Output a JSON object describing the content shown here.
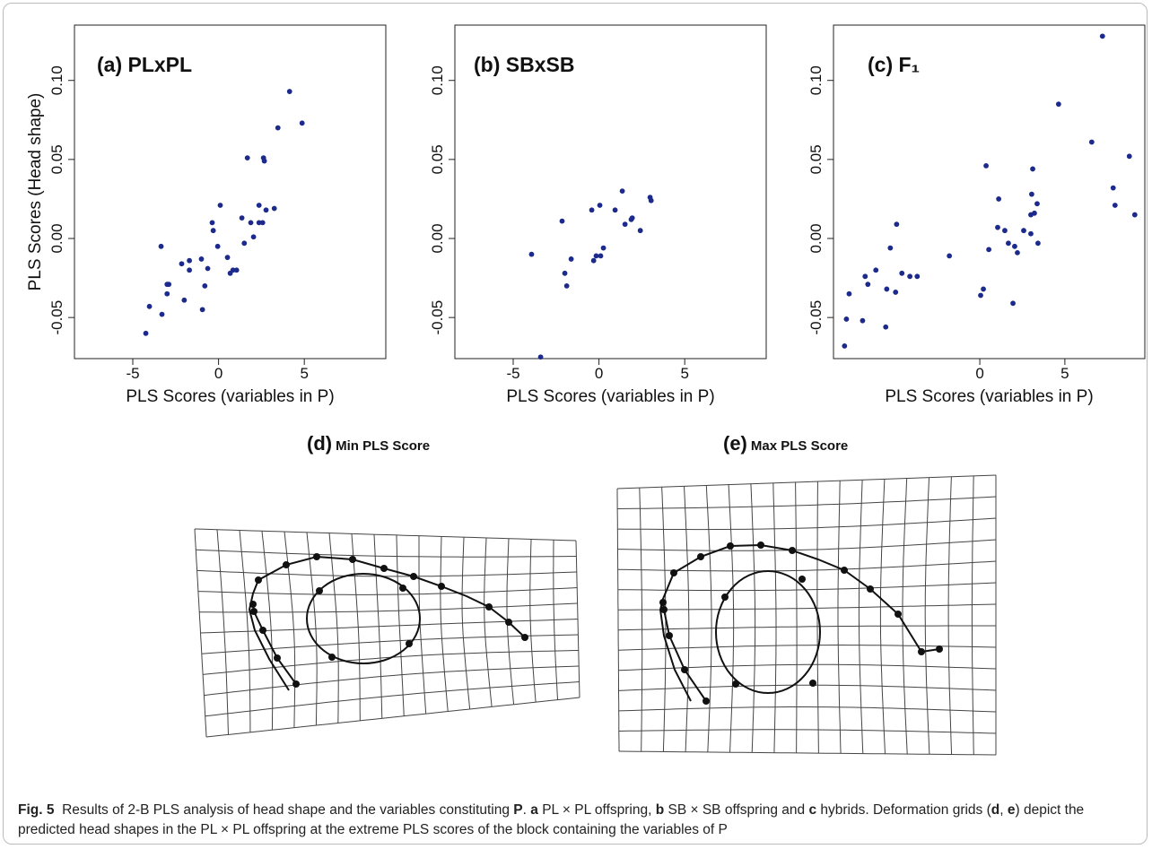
{
  "chart_data": [
    {
      "type": "scatter",
      "title": "(a) PLxPL",
      "xlabel": "PLS Scores (variables in P)",
      "ylabel": "PLS Scores (Head shape)",
      "color": "#1c2a8c",
      "x": [
        -4.24,
        -4.03,
        -3.3,
        -3.35,
        -3,
        -2.9,
        -3,
        -2.15,
        -2,
        -1.7,
        -1.7,
        -1,
        -0.94,
        -0.8,
        -0.63,
        -0.37,
        -0.31,
        -0.05,
        0.1,
        0.52,
        0.68,
        0.84,
        1.05,
        1.36,
        1.5,
        1.68,
        1.88,
        2.04,
        2.36,
        2.36,
        2.57,
        2.62,
        2.67,
        2.77,
        3.25,
        3.46,
        4.14,
        4.87
      ],
      "y": [
        -0.06,
        -0.043,
        -0.048,
        -0.005,
        -0.029,
        -0.029,
        -0.035,
        -0.016,
        -0.039,
        -0.02,
        -0.014,
        -0.013,
        -0.045,
        -0.03,
        -0.019,
        0.01,
        0.005,
        -0.005,
        0.021,
        -0.012,
        -0.022,
        -0.02,
        -0.02,
        0.013,
        -0.003,
        0.051,
        0.01,
        0.001,
        0.021,
        0.01,
        0.01,
        0.051,
        0.049,
        0.018,
        0.019,
        0.07,
        0.093,
        0.073
      ],
      "xlim": [
        -8.4,
        9.75
      ],
      "ylim": [
        -0.076,
        0.135
      ],
      "xticks": [
        -5,
        0,
        5
      ],
      "yticks": [
        {
          "value": -0.05,
          "label": "-0.05"
        },
        {
          "value": 0,
          "label": "0.00"
        },
        {
          "value": 0.05,
          "label": "0.05"
        },
        {
          "value": 0.1,
          "label": "0.10"
        }
      ]
    },
    {
      "type": "scatter",
      "title": "(b) SBxSB",
      "xlabel": "PLS Scores (variables in P)",
      "color": "#1c2a8c",
      "x": [
        -3.93,
        -3.4,
        -2.15,
        -1.99,
        -1.88,
        -1.62,
        -0.42,
        -0.31,
        -0.16,
        0.05,
        0.1,
        0.26,
        0.94,
        1.36,
        1.52,
        1.88,
        1.94,
        2.41,
        2.98,
        3.04
      ],
      "y": [
        -0.01,
        -0.075,
        0.011,
        -0.022,
        -0.03,
        -0.013,
        0.018,
        -0.014,
        -0.011,
        0.021,
        -0.011,
        -0.006,
        0.018,
        0.03,
        0.009,
        0.012,
        0.013,
        0.005,
        0.026,
        0.024
      ],
      "xlim": [
        -8.4,
        9.75
      ],
      "ylim": [
        -0.076,
        0.135
      ],
      "xticks": [
        -5,
        0,
        5
      ],
      "yticks": [
        {
          "value": -0.05,
          "label": "-0.05"
        },
        {
          "value": 0,
          "label": "0.00"
        },
        {
          "value": 0.05,
          "label": "0.05"
        },
        {
          "value": 0.1,
          "label": "0.10"
        }
      ]
    },
    {
      "type": "scatter",
      "title": "(c) F₁",
      "xlabel": "PLS Scores (variables in P)",
      "color": "#1c2a8c",
      "x": [
        -7.95,
        -7.84,
        -7.68,
        -6.89,
        -6.74,
        -6.58,
        -6.11,
        -5.53,
        -5.47,
        -5.26,
        -4.95,
        -4.89,
        -4.58,
        -4.11,
        -3.68,
        -1.79,
        0.05,
        0.21,
        0.37,
        0.53,
        1.11,
        1.05,
        1.47,
        1.68,
        2.05,
        2.21,
        1.95,
        2.58,
        3,
        3.11,
        3.05,
        3,
        3.21,
        3.37,
        3.42,
        4.63,
        6.58,
        7.21,
        7.84,
        7.95,
        8.79,
        9.11
      ],
      "y": [
        -0.068,
        -0.051,
        -0.035,
        -0.052,
        -0.024,
        -0.029,
        -0.02,
        -0.056,
        -0.032,
        -0.006,
        -0.034,
        0.009,
        -0.022,
        -0.024,
        -0.024,
        -0.011,
        -0.036,
        -0.032,
        0.046,
        -0.007,
        0.025,
        0.007,
        0.005,
        -0.003,
        -0.005,
        -0.009,
        -0.041,
        0.005,
        0.015,
        0.044,
        0.028,
        0.003,
        0.016,
        0.022,
        -0.003,
        0.085,
        0.061,
        0.128,
        0.032,
        0.021,
        0.052,
        0.015
      ],
      "xlim": [
        -8.6,
        9.7
      ],
      "ylim": [
        -0.076,
        0.135
      ],
      "xticks": [
        0,
        5
      ],
      "yticks": [
        {
          "value": -0.05,
          "label": "-0.05"
        },
        {
          "value": 0,
          "label": "0.00"
        },
        {
          "value": 0.05,
          "label": "0.05"
        },
        {
          "value": 0.1,
          "label": "0.10"
        }
      ]
    }
  ],
  "grids": [
    {
      "label": "(d)",
      "title": "Min PLS Score"
    },
    {
      "label": "(e)",
      "title": "Max PLS Score"
    }
  ],
  "caption": [
    {
      "text": "Fig. 5",
      "bold": true
    },
    {
      "text": "  Results of 2-B PLS analysis of head shape and the variables constituting "
    },
    {
      "text": "P",
      "bold": true
    },
    {
      "text": ". "
    },
    {
      "text": "a",
      "bold": true
    },
    {
      "text": " PL × PL offspring, "
    },
    {
      "text": "b",
      "bold": true
    },
    {
      "text": " SB × SB offspring and "
    },
    {
      "text": "c",
      "bold": true
    },
    {
      "text": " hybrids. Deformation grids ("
    },
    {
      "text": "d",
      "bold": true
    },
    {
      "text": ", "
    },
    {
      "text": "e",
      "bold": true
    },
    {
      "text": ") depict the predicted head shapes in the PL × PL offspring at the extreme PLS scores of the block containing the variables of P"
    }
  ]
}
